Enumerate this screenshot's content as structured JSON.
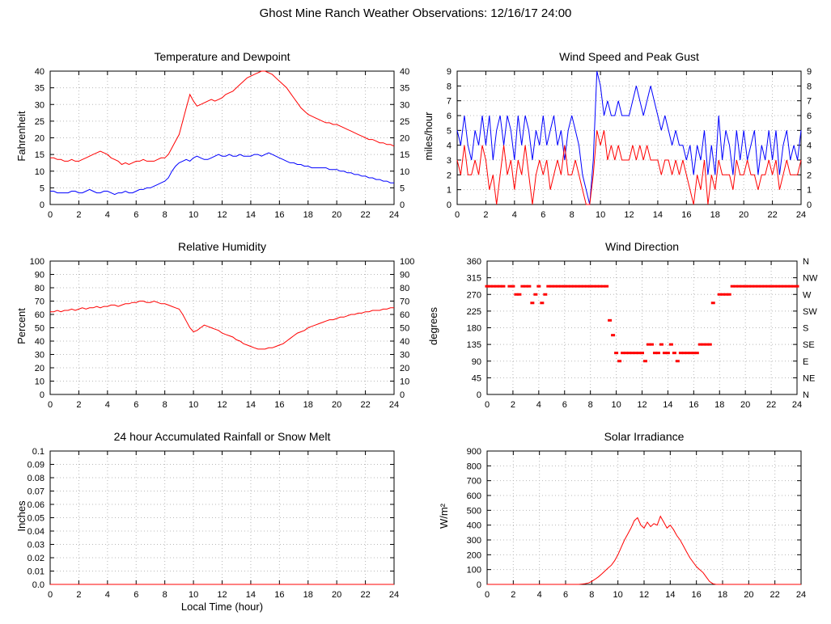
{
  "header": {
    "title": "Ghost Mine Ranch Weather Observations: 12/16/17 24:00"
  },
  "chart_data": [
    {
      "type": "line",
      "title": "Temperature and Dewpoint",
      "ylabel": "Fahrenheit",
      "xlabel": "",
      "xlim": [
        0,
        24
      ],
      "ylim": [
        0,
        40
      ],
      "xticks": [
        0,
        2,
        4,
        6,
        8,
        10,
        12,
        14,
        16,
        18,
        20,
        22,
        24
      ],
      "xtick_labels": [
        "0",
        "2",
        "4",
        "6",
        "8",
        "10",
        "12",
        "14",
        "16",
        "18",
        "20",
        "22",
        "24"
      ],
      "yticks": [
        0,
        5,
        10,
        15,
        20,
        25,
        30,
        35,
        40
      ],
      "ytick_labels": [
        "0",
        "5",
        "10",
        "15",
        "20",
        "25",
        "30",
        "35",
        "40"
      ],
      "right_labels": "mirror",
      "grid": true,
      "x_start": 0,
      "x_step": 0.25,
      "series": [
        {
          "name": "Temperature",
          "color": "#ff0000",
          "values": [
            14,
            14,
            13.5,
            13.5,
            13,
            13,
            13.5,
            13,
            13,
            13.5,
            14,
            14.5,
            15,
            15.5,
            16,
            15.5,
            15,
            14,
            13.5,
            13,
            12,
            12.5,
            12,
            12.5,
            13,
            13,
            13.5,
            13,
            13,
            13,
            13.5,
            14,
            14,
            15,
            17,
            19,
            21,
            25,
            29,
            33,
            31,
            29.5,
            30,
            30.5,
            31,
            31.5,
            31,
            31.5,
            32,
            33,
            33.5,
            34,
            35,
            36,
            37,
            38,
            38.5,
            39,
            39.5,
            40,
            40,
            39.5,
            39,
            38,
            37,
            36,
            35,
            33.5,
            32,
            30.5,
            29,
            28,
            27,
            26.5,
            26,
            25.5,
            25,
            24.5,
            24.5,
            24,
            24,
            23.5,
            23,
            22.5,
            22,
            21.5,
            21,
            20.5,
            20,
            19.5,
            19.5,
            19,
            18.5,
            18.5,
            18,
            18,
            17.5
          ]
        },
        {
          "name": "Dewpoint",
          "color": "#0000ff",
          "values": [
            4,
            4,
            3.5,
            3.5,
            3.5,
            3.5,
            4,
            4,
            3.5,
            3.5,
            4,
            4.5,
            4,
            3.5,
            3.5,
            4,
            4,
            3.5,
            3,
            3.5,
            3.5,
            4,
            3.5,
            3.5,
            4,
            4.5,
            4.5,
            5,
            5,
            5.5,
            6,
            6.5,
            7,
            8,
            10,
            11.5,
            12.5,
            13,
            13.5,
            13,
            14,
            14.5,
            14,
            13.5,
            13.5,
            14,
            14.5,
            15,
            14.5,
            14.5,
            15,
            14.5,
            14.5,
            15,
            14.5,
            14.5,
            14.5,
            15,
            15,
            14.5,
            15,
            15.5,
            15,
            14.5,
            14,
            13.5,
            13,
            12.5,
            12.5,
            12,
            12,
            11.5,
            11.5,
            11,
            11,
            11,
            11,
            11,
            10.5,
            10.5,
            10.5,
            10,
            10,
            9.5,
            9.5,
            9,
            9,
            8.5,
            8.5,
            8,
            8,
            7.5,
            7.5,
            7,
            7,
            6.5,
            6.5
          ]
        }
      ]
    },
    {
      "type": "line",
      "title": "Wind Speed and Peak Gust",
      "ylabel": "miles/hour",
      "xlabel": "",
      "xlim": [
        0,
        24
      ],
      "ylim": [
        0,
        9
      ],
      "xticks": [
        0,
        2,
        4,
        6,
        8,
        10,
        12,
        14,
        16,
        18,
        20,
        22,
        24
      ],
      "xtick_labels": [
        "0",
        "2",
        "4",
        "6",
        "8",
        "10",
        "12",
        "14",
        "16",
        "18",
        "20",
        "22",
        "24"
      ],
      "yticks": [
        0,
        1,
        2,
        3,
        4,
        5,
        6,
        7,
        8,
        9
      ],
      "ytick_labels": [
        "0",
        "1",
        "2",
        "3",
        "4",
        "5",
        "6",
        "7",
        "8",
        "9"
      ],
      "right_labels": "mirror",
      "grid": true,
      "x_start": 0,
      "x_step": 0.25,
      "series": [
        {
          "name": "Peak Gust",
          "color": "#0000ff",
          "values": [
            5,
            4,
            6,
            4,
            3,
            5,
            4,
            6,
            4,
            6,
            3,
            5,
            6,
            4,
            6,
            5,
            3,
            6,
            4,
            6,
            5,
            3,
            5,
            4,
            6,
            4,
            5,
            6,
            4,
            5,
            3,
            5,
            6,
            5,
            4,
            2,
            1,
            0,
            3,
            9,
            8,
            6,
            7,
            6,
            6,
            7,
            6,
            6,
            6,
            7,
            8,
            7,
            6,
            7,
            8,
            7,
            6,
            5,
            6,
            5,
            4,
            5,
            4,
            4,
            3,
            4,
            2,
            4,
            3,
            5,
            2,
            4,
            2,
            6,
            3,
            5,
            4,
            2,
            5,
            3,
            5,
            3,
            4,
            5,
            2,
            4,
            3,
            5,
            3,
            5,
            2,
            4,
            5,
            3,
            4,
            3,
            5
          ]
        },
        {
          "name": "Wind Speed",
          "color": "#ff0000",
          "values": [
            3,
            2,
            4,
            2,
            2,
            3,
            2,
            4,
            3,
            1,
            2,
            0,
            2,
            4,
            2,
            3,
            1,
            3,
            2,
            4,
            2,
            0,
            2,
            3,
            2,
            3,
            1,
            2,
            3,
            2,
            4,
            2,
            2,
            3,
            2,
            1,
            0,
            0,
            2,
            5,
            4,
            5,
            3,
            4,
            3,
            4,
            3,
            3,
            3,
            4,
            3,
            4,
            3,
            4,
            3,
            3,
            3,
            2,
            3,
            3,
            2,
            3,
            2,
            3,
            2,
            1,
            0,
            2,
            1,
            3,
            0,
            2,
            1,
            3,
            2,
            2,
            2,
            1,
            3,
            2,
            2,
            3,
            2,
            2,
            1,
            2,
            2,
            3,
            2,
            3,
            1,
            2,
            3,
            2,
            2,
            2,
            3
          ]
        }
      ]
    },
    {
      "type": "line",
      "title": "Relative Humidity",
      "ylabel": "Percent",
      "xlabel": "",
      "xlim": [
        0,
        24
      ],
      "ylim": [
        0,
        100
      ],
      "xticks": [
        0,
        2,
        4,
        6,
        8,
        10,
        12,
        14,
        16,
        18,
        20,
        22,
        24
      ],
      "xtick_labels": [
        "0",
        "2",
        "4",
        "6",
        "8",
        "10",
        "12",
        "14",
        "16",
        "18",
        "20",
        "22",
        "24"
      ],
      "yticks": [
        0,
        10,
        20,
        30,
        40,
        50,
        60,
        70,
        80,
        90,
        100
      ],
      "ytick_labels": [
        "0",
        "10",
        "20",
        "30",
        "40",
        "50",
        "60",
        "70",
        "80",
        "90",
        "100"
      ],
      "right_labels": "mirror",
      "grid": true,
      "x_start": 0,
      "x_step": 0.25,
      "series": [
        {
          "name": "Relative Humidity",
          "color": "#ff0000",
          "values": [
            62,
            62,
            63,
            62,
            63,
            63,
            64,
            63,
            64,
            65,
            64,
            65,
            65,
            66,
            65,
            66,
            66,
            67,
            67,
            66,
            67,
            68,
            68,
            69,
            69,
            70,
            70,
            69,
            69,
            70,
            69,
            68,
            68,
            67,
            66,
            65,
            64,
            60,
            55,
            50,
            47,
            48,
            50,
            52,
            51,
            50,
            49,
            48,
            46,
            45,
            44,
            43,
            41,
            40,
            38,
            37,
            36,
            35,
            34,
            34,
            34,
            35,
            35,
            36,
            37,
            38,
            40,
            42,
            44,
            46,
            47,
            48,
            50,
            51,
            52,
            53,
            54,
            55,
            56,
            56,
            57,
            58,
            58,
            59,
            60,
            60,
            61,
            61,
            62,
            62,
            63,
            63,
            63,
            64,
            64,
            65,
            65
          ]
        }
      ]
    },
    {
      "type": "scatter",
      "title": "Wind Direction",
      "ylabel": "degrees",
      "xlabel": "",
      "xlim": [
        0,
        24
      ],
      "ylim": [
        0,
        360
      ],
      "xticks": [
        0,
        2,
        4,
        6,
        8,
        10,
        12,
        14,
        16,
        18,
        20,
        22,
        24
      ],
      "xtick_labels": [
        "0",
        "2",
        "4",
        "6",
        "8",
        "10",
        "12",
        "14",
        "16",
        "18",
        "20",
        "22",
        "24"
      ],
      "yticks": [
        0,
        45,
        90,
        135,
        180,
        225,
        270,
        315,
        360
      ],
      "ytick_labels": [
        "0",
        "45",
        "90",
        "135",
        "180",
        "225",
        "270",
        "315",
        "360"
      ],
      "right_labels": [
        "N",
        "NE",
        "E",
        "SE",
        "S",
        "SW",
        "W",
        "NW",
        "N"
      ],
      "grid": true,
      "x_start": 0,
      "x_step": 0.25,
      "series": [
        {
          "name": "Wind Direction",
          "color": "#ff0000",
          "values": [
            292,
            292,
            292,
            292,
            292,
            292,
            null,
            292,
            292,
            270,
            270,
            292,
            292,
            292,
            247,
            270,
            292,
            247,
            270,
            292,
            292,
            292,
            292,
            292,
            292,
            292,
            292,
            292,
            292,
            292,
            292,
            292,
            292,
            292,
            292,
            292,
            292,
            292,
            200,
            160,
            112,
            90,
            112,
            112,
            112,
            112,
            112,
            112,
            112,
            90,
            135,
            135,
            112,
            112,
            135,
            112,
            112,
            135,
            112,
            90,
            112,
            112,
            112,
            112,
            112,
            112,
            135,
            135,
            135,
            135,
            247,
            null,
            270,
            270,
            270,
            270,
            292,
            292,
            292,
            292,
            292,
            292,
            292,
            292,
            292,
            292,
            292,
            292,
            292,
            292,
            292,
            292,
            292,
            292,
            292,
            292,
            292
          ]
        }
      ]
    },
    {
      "type": "line",
      "title": "24 hour Accumulated Rainfall or Snow Melt",
      "ylabel": "Inches",
      "xlabel": "Local Time (hour)",
      "xlim": [
        0,
        24
      ],
      "ylim": [
        0,
        0.1
      ],
      "xticks": [
        0,
        2,
        4,
        6,
        8,
        10,
        12,
        14,
        16,
        18,
        20,
        22,
        24
      ],
      "xtick_labels": [
        "0",
        "2",
        "4",
        "6",
        "8",
        "10",
        "12",
        "14",
        "16",
        "18",
        "20",
        "22",
        "24"
      ],
      "yticks": [
        0,
        0.01,
        0.02,
        0.03,
        0.04,
        0.05,
        0.06,
        0.07,
        0.08,
        0.09,
        0.1
      ],
      "ytick_labels": [
        "0.0",
        "0.01",
        "0.02",
        "0.03",
        "0.04",
        "0.05",
        "0.06",
        "0.07",
        "0.08",
        "0.09",
        "0.1"
      ],
      "right_labels": "none",
      "grid": true,
      "x_start": 0,
      "x_step": 24,
      "series": [
        {
          "name": "Rainfall",
          "color": "#ff0000",
          "values": [
            0,
            0
          ]
        }
      ]
    },
    {
      "type": "line",
      "title": "Solar Irradiance",
      "ylabel": "W/m²",
      "xlabel": "",
      "xlim": [
        0,
        24
      ],
      "ylim": [
        0,
        900
      ],
      "xticks": [
        0,
        2,
        4,
        6,
        8,
        10,
        12,
        14,
        16,
        18,
        20,
        22,
        24
      ],
      "xtick_labels": [
        "0",
        "2",
        "4",
        "6",
        "8",
        "10",
        "12",
        "14",
        "16",
        "18",
        "20",
        "22",
        "24"
      ],
      "yticks": [
        0,
        100,
        200,
        300,
        400,
        500,
        600,
        700,
        800,
        900
      ],
      "ytick_labels": [
        "0",
        "100",
        "200",
        "300",
        "400",
        "500",
        "600",
        "700",
        "800",
        "900"
      ],
      "right_labels": "none",
      "grid": true,
      "x_start": 0,
      "x_step": 0.25,
      "series": [
        {
          "name": "Solar Irradiance",
          "color": "#ff0000",
          "values": [
            0,
            0,
            0,
            0,
            0,
            0,
            0,
            0,
            0,
            0,
            0,
            0,
            0,
            0,
            0,
            0,
            0,
            0,
            0,
            0,
            0,
            0,
            0,
            0,
            0,
            0,
            0,
            0,
            0,
            2,
            5,
            10,
            20,
            35,
            50,
            70,
            90,
            110,
            130,
            160,
            200,
            250,
            300,
            340,
            380,
            430,
            450,
            400,
            380,
            420,
            390,
            410,
            400,
            460,
            420,
            380,
            400,
            370,
            330,
            300,
            260,
            220,
            180,
            150,
            120,
            100,
            80,
            50,
            20,
            5,
            0,
            0,
            0,
            0,
            0,
            0,
            0,
            0,
            0,
            0,
            0,
            0,
            0,
            0,
            0,
            0,
            0,
            0,
            0,
            0,
            0,
            0,
            0,
            0,
            0,
            0,
            0
          ]
        }
      ]
    }
  ]
}
